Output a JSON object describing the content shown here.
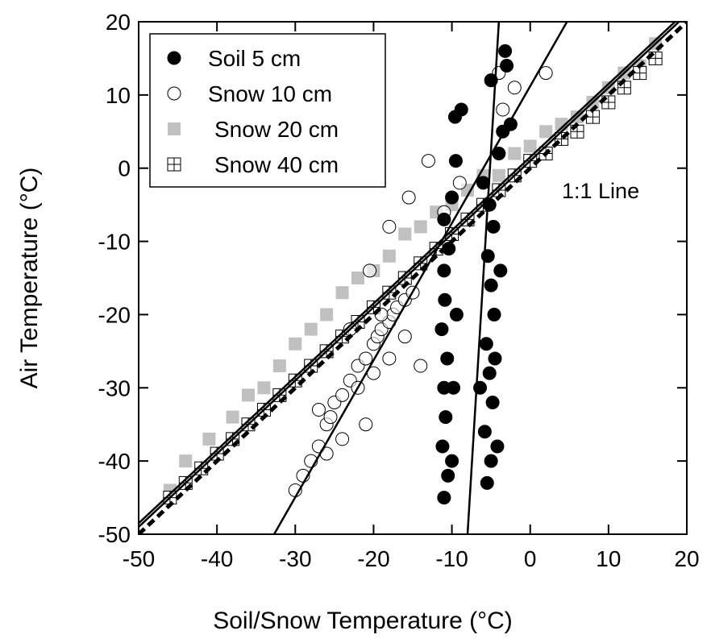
{
  "chart_data": {
    "type": "scatter",
    "x_label": "Soil/Snow Temperature (°C)",
    "y_label": "Air Temperature (°C)",
    "xlim": [
      -50,
      20
    ],
    "ylim": [
      -50,
      20
    ],
    "xticks": [
      -50,
      -40,
      -30,
      -20,
      -10,
      0,
      10,
      20
    ],
    "yticks": [
      -50,
      -40,
      -30,
      -20,
      -10,
      0,
      10,
      20
    ],
    "annotation": "1:1 Line",
    "legend": "upper left",
    "series": [
      {
        "name": "Soil 5 cm",
        "marker": "circle",
        "color": "#000000",
        "x": [
          -11,
          -10.5,
          -11.2,
          -10.8,
          -11,
          -10.6,
          -11.3,
          -10.9,
          -11,
          -10.4,
          -11,
          -10,
          -9.5,
          -8.8,
          -9.6,
          -5.5,
          -5,
          -5.8,
          -4.8,
          -5.2,
          -5.6,
          -4.6,
          -5,
          -5.4,
          -4.7,
          -5.2,
          -6,
          -4,
          -3.5,
          -3,
          -3.2,
          -5,
          -4.5,
          -9.8,
          -10,
          -4.2,
          -9.4,
          -6.4,
          -3.8,
          -2.5
        ],
        "values": [
          -45,
          -42,
          -38,
          -34,
          -30,
          -26,
          -22,
          -18,
          -14,
          -11,
          -7,
          -4,
          1,
          8,
          7,
          -43,
          -40,
          -36,
          -32,
          -28,
          -24,
          -20,
          -16,
          -12,
          -8,
          -5,
          -2,
          2,
          5,
          14,
          16,
          12,
          -26,
          -30,
          -40,
          -38,
          -20,
          -30,
          -14,
          6
        ]
      },
      {
        "name": "Snow 10 cm",
        "marker": "open-circle",
        "color": "#000000",
        "x": [
          -30,
          -29,
          -28,
          -27,
          -26,
          -25.5,
          -25,
          -24,
          -23,
          -22,
          -21,
          -20,
          -19.5,
          -19,
          -18,
          -17.5,
          -17,
          -16,
          -15,
          -27,
          -24,
          -22,
          -20,
          -18,
          -16,
          -26,
          -21,
          -19,
          -14,
          -20.5,
          -18,
          -15.5,
          -13,
          -11,
          -9,
          -3.5,
          -2,
          2,
          -4,
          -23
        ],
        "values": [
          -44,
          -42,
          -40,
          -38,
          -35,
          -34,
          -32,
          -31,
          -29,
          -27,
          -26,
          -24,
          -23,
          -22,
          -21,
          -20,
          -19,
          -18,
          -17,
          -33,
          -37,
          -30,
          -28,
          -26,
          -23,
          -39,
          -35,
          -20,
          -27,
          -14,
          -8,
          -4,
          1,
          -6,
          -2,
          8,
          11,
          13,
          13,
          -22
        ]
      },
      {
        "name": "Snow 20 cm",
        "marker": "square",
        "color": "#c0c0c0",
        "x": [
          -46,
          -44,
          -41,
          -38,
          -36,
          -34,
          -32,
          -30,
          -28,
          -26,
          -24,
          -22,
          -20,
          -18,
          -16,
          -14,
          -12,
          -10,
          -8,
          -6,
          -4,
          -2,
          0,
          2,
          4,
          6,
          8,
          10,
          12,
          14,
          16
        ],
        "values": [
          -44,
          -40,
          -37,
          -34,
          -31,
          -30,
          -27,
          -24,
          -22,
          -20,
          -17,
          -15,
          -14,
          -12,
          -9,
          -8,
          -6,
          -5,
          -3,
          -1,
          -1,
          2,
          3,
          5,
          6,
          7,
          9,
          11,
          13,
          14,
          17
        ]
      },
      {
        "name": "Snow 40 cm",
        "marker": "cross-square",
        "color": "#000000",
        "x": [
          -46,
          -44,
          -42,
          -40,
          -38,
          -36,
          -34,
          -32,
          -30,
          -28,
          -26,
          -24,
          -22,
          -20,
          -18,
          -16,
          -14,
          -12,
          -10,
          -8,
          -6,
          -4,
          -2,
          0,
          2,
          4,
          6,
          8,
          10,
          12,
          14,
          16
        ],
        "values": [
          -45,
          -43,
          -41,
          -39,
          -37,
          -35,
          -33,
          -31,
          -29,
          -27,
          -25,
          -23,
          -21,
          -19,
          -17,
          -15,
          -13,
          -11,
          -9,
          -7,
          -5,
          -3,
          -1,
          1,
          2,
          4,
          5,
          7,
          9,
          11,
          13,
          15
        ]
      }
    ],
    "lines": [
      {
        "x": [
          -50,
          20
        ],
        "y": [
          -50,
          20
        ],
        "dash": true
      },
      {
        "x": [
          -50,
          19
        ],
        "y": [
          -49,
          20
        ],
        "dash": false
      },
      {
        "x": [
          -50,
          18.5
        ],
        "y": [
          -48.5,
          20
        ],
        "dash": false
      },
      {
        "x": [
          -8,
          -4
        ],
        "y": [
          -50,
          20
        ],
        "dash": false
      },
      {
        "x": [
          -32.7,
          4.7
        ],
        "y": [
          -50,
          20
        ],
        "dash": false
      }
    ]
  }
}
